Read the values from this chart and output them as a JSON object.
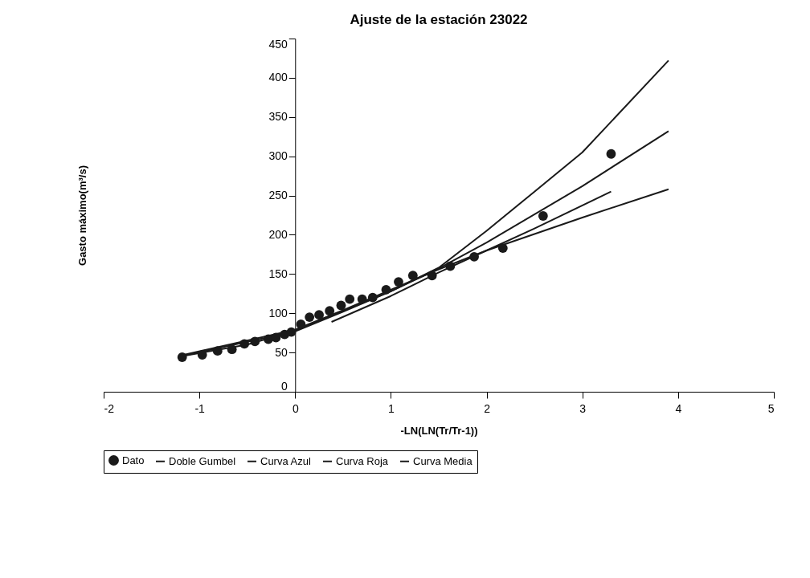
{
  "chart_data": {
    "type": "scatter",
    "title": "Ajuste de la estación 23022",
    "xlabel": "-LN(LN(Tr/Tr-1))",
    "ylabel": "Gasto máximo(m³/s)",
    "xlim": [
      -2,
      5
    ],
    "xticks": [
      -2,
      -1,
      0,
      1,
      2,
      3,
      4,
      5
    ],
    "ylim": [
      0,
      450
    ],
    "yticks": [
      0,
      50,
      100,
      150,
      200,
      250,
      300,
      350,
      400,
      450
    ],
    "grid": false,
    "legend": "bottom",
    "series": [
      {
        "name": "Dato",
        "marker": "circle",
        "color": "#1a1a1a",
        "x": [
          -1.18,
          -0.97,
          -0.81,
          -0.66,
          -0.53,
          -0.42,
          -0.28,
          -0.2,
          -0.11,
          -0.04,
          0.06,
          0.15,
          0.25,
          0.36,
          0.48,
          0.57,
          0.7,
          0.81,
          0.95,
          1.08,
          1.23,
          1.43,
          1.62,
          1.87,
          2.17,
          2.59,
          3.3
        ],
        "values": [
          44,
          47,
          52,
          54,
          61,
          64,
          67,
          69,
          73,
          76,
          86,
          95,
          98,
          103,
          110,
          118,
          118,
          120,
          130,
          140,
          148,
          148,
          160,
          172,
          183,
          224,
          303
        ]
      },
      {
        "name": "Doble Gumbel",
        "type": "line",
        "marker": "none",
        "line_style": "solid",
        "color": "#1a1a1a",
        "x": [
          -1.2,
          -0.5,
          0,
          0.5,
          1,
          1.5,
          2,
          2.5,
          3,
          3.9
        ],
        "values": [
          45,
          60,
          78,
          103,
          128,
          158,
          205,
          255,
          305,
          422
        ]
      },
      {
        "name": "Curva Azul",
        "type": "line",
        "marker": "none",
        "line_style": "solid",
        "color": "#1a1a1a",
        "x": [
          -1.2,
          0,
          0.5,
          1,
          1.5,
          2,
          3,
          3.9
        ],
        "values": [
          45,
          77,
          102,
          128,
          157,
          190,
          262,
          332
        ]
      },
      {
        "name": "Curva Roja",
        "type": "line",
        "marker": "none",
        "line_style": "solid",
        "color": "#1a1a1a",
        "x": [
          0.38,
          1,
          1.5,
          2,
          2.5,
          3.3
        ],
        "values": [
          89,
          122,
          152,
          180,
          208,
          255
        ]
      },
      {
        "name": "Curva Media",
        "type": "line",
        "marker": "none",
        "line_style": "solid",
        "color": "#1a1a1a",
        "x": [
          -1.2,
          0,
          0.5,
          1,
          1.5,
          2,
          3,
          3.9
        ],
        "values": [
          46,
          79,
          104,
          130,
          156,
          180,
          222,
          258
        ]
      }
    ]
  }
}
